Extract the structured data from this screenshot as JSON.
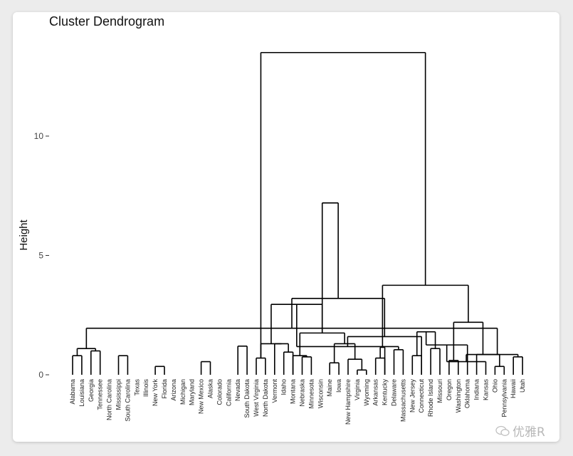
{
  "chart_data": {
    "type": "dendrogram",
    "title": "Cluster Dendrogram",
    "ylabel": "Height",
    "yticks": [
      0,
      5,
      10
    ],
    "ylim": [
      0,
      13.5
    ],
    "labels": [
      "Alabama",
      "Louisiana",
      "Georgia",
      "Tennessee",
      "North Carolina",
      "Mississippi",
      "South Carolina",
      "Texas",
      "Illinois",
      "New York",
      "Florida",
      "Arizona",
      "Michigan",
      "Maryland",
      "New Mexico",
      "Alaska",
      "Colorado",
      "California",
      "Nevada",
      "South Dakota",
      "West Virginia",
      "North Dakota",
      "Vermont",
      "Idaho",
      "Montana",
      "Nebraska",
      "Minnesota",
      "Wisconsin",
      "Maine",
      "Iowa",
      "New Hampshire",
      "Virginia",
      "Wyoming",
      "Arkansas",
      "Kentucky",
      "Delaware",
      "Massachusetts",
      "New Jersey",
      "Connecticut",
      "Rhode Island",
      "Missouri",
      "Oregon",
      "Washington",
      "Oklahoma",
      "Indiana",
      "Kansas",
      "Ohio",
      "Pennsylvania",
      "Hawaii",
      "Utah"
    ],
    "merges": [
      [
        0,
        1,
        0.8
      ],
      [
        2,
        3,
        1.0
      ],
      [
        52,
        51,
        1.1
      ],
      [
        5,
        6,
        0.8
      ],
      [
        4,
        54,
        1.2
      ],
      [
        53,
        55,
        2.7
      ],
      [
        9,
        10,
        0.35
      ],
      [
        8,
        57,
        0.95
      ],
      [
        14,
        15,
        0.55
      ],
      [
        13,
        59,
        0.95
      ],
      [
        12,
        60,
        1.3
      ],
      [
        11,
        61,
        1.65
      ],
      [
        62,
        58,
        2.25
      ],
      [
        18,
        19,
        1.2
      ],
      [
        17,
        64,
        1.35
      ],
      [
        16,
        65,
        3.0
      ],
      [
        63,
        66,
        3.5
      ],
      [
        56,
        67,
        6.5
      ],
      [
        20,
        21,
        0.7
      ],
      [
        23,
        24,
        0.95
      ],
      [
        22,
        69,
        1.3
      ],
      [
        68,
        70,
        1.3
      ],
      [
        25,
        26,
        0.75
      ],
      [
        24,
        72,
        0.8
      ],
      [
        28,
        29,
        0.5
      ],
      [
        31,
        32,
        0.2
      ],
      [
        30,
        75,
        0.65
      ],
      [
        74,
        76,
        1.3
      ],
      [
        73,
        77,
        1.75
      ],
      [
        71,
        78,
        2.95
      ],
      [
        33,
        34,
        0.7
      ],
      [
        35,
        36,
        1.05
      ],
      [
        34,
        80,
        1.15
      ],
      [
        79,
        81,
        1.18
      ],
      [
        37,
        38,
        0.8
      ],
      [
        39,
        40,
        1.1
      ],
      [
        38,
        83,
        1.6
      ],
      [
        84,
        85,
        1.8
      ],
      [
        41,
        42,
        0.6
      ],
      [
        43,
        87,
        1.25
      ],
      [
        46,
        47,
        0.35
      ],
      [
        45,
        89,
        0.55
      ],
      [
        48,
        49,
        0.75
      ],
      [
        90,
        91,
        0.85
      ],
      [
        44,
        92,
        0.85
      ],
      [
        50,
        51,
        1.1
      ],
      [
        94,
        95,
        1.95
      ],
      [
        88,
        93,
        2.2
      ],
      [
        86,
        96,
        3.2
      ],
      [
        82,
        97,
        3.75
      ],
      [
        78,
        98,
        7.2
      ],
      [
        68,
        99,
        13.5
      ]
    ]
  },
  "watermark": {
    "text": "优雅R",
    "icon": "wechat-bubble-icon"
  }
}
